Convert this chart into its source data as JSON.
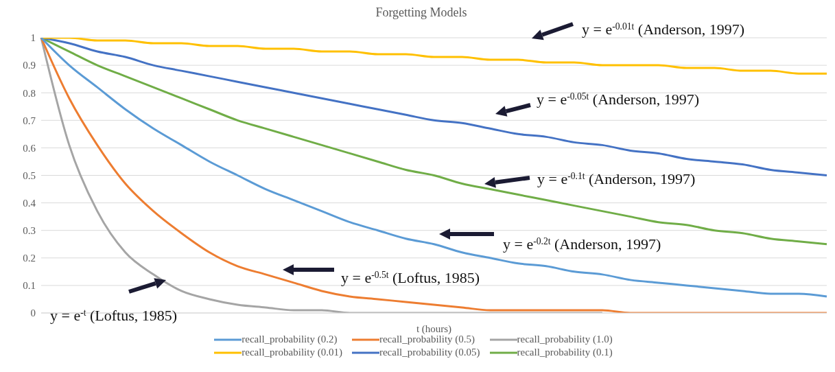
{
  "chart_data": {
    "type": "line",
    "title": "Forgetting Models",
    "xlabel": "t (hours)",
    "categories": [
      null,
      null,
      null,
      null,
      null,
      null,
      null,
      null,
      null,
      null,
      null,
      null,
      null,
      null,
      null,
      null,
      null,
      null,
      null,
      null,
      null,
      null,
      null,
      null,
      null,
      null,
      null,
      null,
      null
    ],
    "series": [
      {
        "name": "recall_probability (0.2)",
        "color": "#5b9bd5",
        "values": [
          1,
          0.9,
          0.82,
          0.74,
          0.67,
          0.61,
          0.55,
          0.5,
          0.45,
          0.41,
          0.37,
          0.33,
          0.3,
          0.27,
          0.25,
          0.22,
          0.2,
          0.18,
          0.17,
          0.15,
          0.14,
          0.12,
          0.11,
          0.1,
          0.09,
          0.08,
          0.07,
          0.07,
          0.06
        ]
      },
      {
        "name": "recall_probability (0.5)",
        "color": "#ed7d31",
        "values": [
          1,
          0.78,
          0.61,
          0.47,
          0.37,
          0.29,
          0.22,
          0.17,
          0.14,
          0.11,
          0.08,
          0.06,
          0.05,
          0.04,
          0.03,
          0.02,
          0.01,
          0.01,
          0.01,
          0.01,
          0.01,
          0,
          0,
          0,
          0,
          0,
          0,
          0,
          0
        ]
      },
      {
        "name": "recall_probability (1.0)",
        "color": "#a5a5a5",
        "values": [
          1,
          0.61,
          0.37,
          0.22,
          0.14,
          0.08,
          0.05,
          0.03,
          0.02,
          0.01,
          0.01,
          0,
          0,
          0,
          0,
          0,
          0,
          0,
          0,
          0,
          0,
          null,
          null,
          null,
          null,
          null,
          null,
          null,
          null
        ]
      },
      {
        "name": "recall_probability (0.01)",
        "color": "#ffc000",
        "values": [
          1,
          1,
          0.99,
          0.99,
          0.98,
          0.98,
          0.97,
          0.97,
          0.96,
          0.96,
          0.95,
          0.95,
          0.94,
          0.94,
          0.93,
          0.93,
          0.92,
          0.92,
          0.91,
          0.91,
          0.9,
          0.9,
          0.9,
          0.89,
          0.89,
          0.88,
          0.88,
          0.87,
          0.87
        ]
      },
      {
        "name": "recall_probability (0.05)",
        "color": "#4472c4",
        "values": [
          1,
          0.98,
          0.95,
          0.93,
          0.9,
          0.88,
          0.86,
          0.84,
          0.82,
          0.8,
          0.78,
          0.76,
          0.74,
          0.72,
          0.7,
          0.69,
          0.67,
          0.65,
          0.64,
          0.62,
          0.61,
          0.59,
          0.58,
          0.56,
          0.55,
          0.54,
          0.52,
          0.51,
          0.5
        ]
      },
      {
        "name": "recall_probability (0.1)",
        "color": "#70ad47",
        "values": [
          1,
          0.95,
          0.9,
          0.86,
          0.82,
          0.78,
          0.74,
          0.7,
          0.67,
          0.64,
          0.61,
          0.58,
          0.55,
          0.52,
          0.5,
          0.47,
          0.45,
          0.43,
          0.41,
          0.39,
          0.37,
          0.35,
          0.33,
          0.32,
          0.3,
          0.29,
          0.27,
          0.26,
          0.25
        ]
      }
    ],
    "ylim": [
      0,
      1
    ],
    "yticks": [
      0,
      0.1,
      0.2,
      0.3,
      0.4,
      0.5,
      0.6,
      0.7,
      0.8,
      0.9,
      1
    ],
    "grid": "y",
    "legend": "bottom",
    "tick_labels": "y",
    "marker": "none",
    "line_style": "solid",
    "annotations": [
      "y = e$^{-0.01t}$ (Anderson, 1997)",
      "y = e$^{-0.05t}$ (Anderson, 1997)",
      "y = e$^{-0.1t}$ (Anderson, 1997)",
      "y = e$^{-0.2t}$ (Anderson, 1997)",
      "y = e$^{-0.5t}$ (Loftus, 1985)",
      "y = e$^{-t}$ (Loftus, 1985)"
    ]
  }
}
